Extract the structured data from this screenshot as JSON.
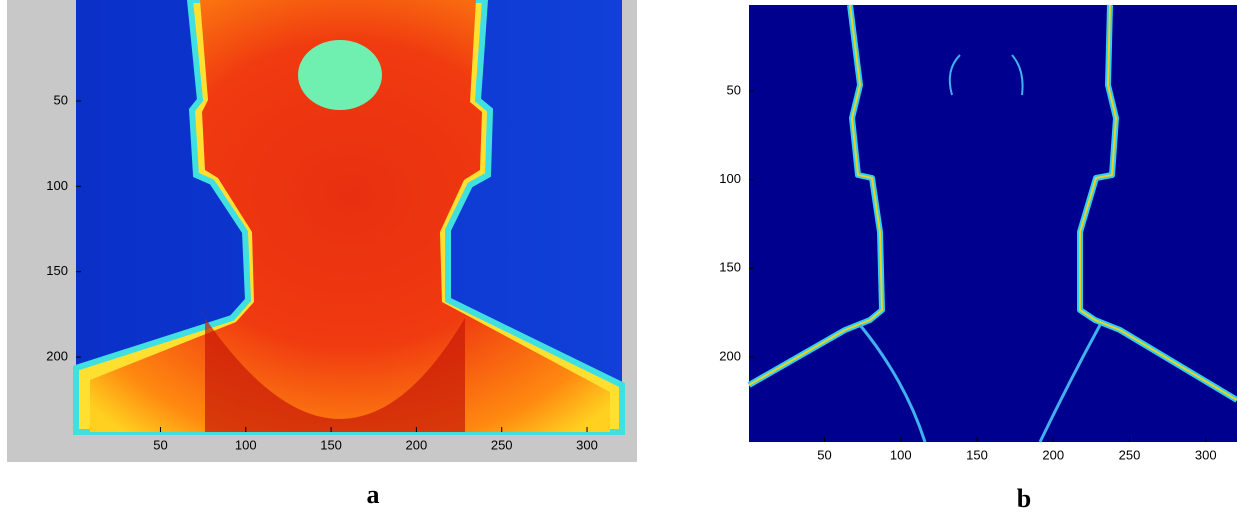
{
  "panels": [
    {
      "caption": "a",
      "xticks": [
        50,
        100,
        150,
        200,
        250,
        300
      ],
      "yticks": [
        50,
        100,
        150,
        200
      ]
    },
    {
      "caption": "b",
      "xticks": [
        50,
        100,
        150,
        200,
        250,
        300
      ],
      "yticks": [
        50,
        100,
        150,
        200
      ]
    }
  ]
}
